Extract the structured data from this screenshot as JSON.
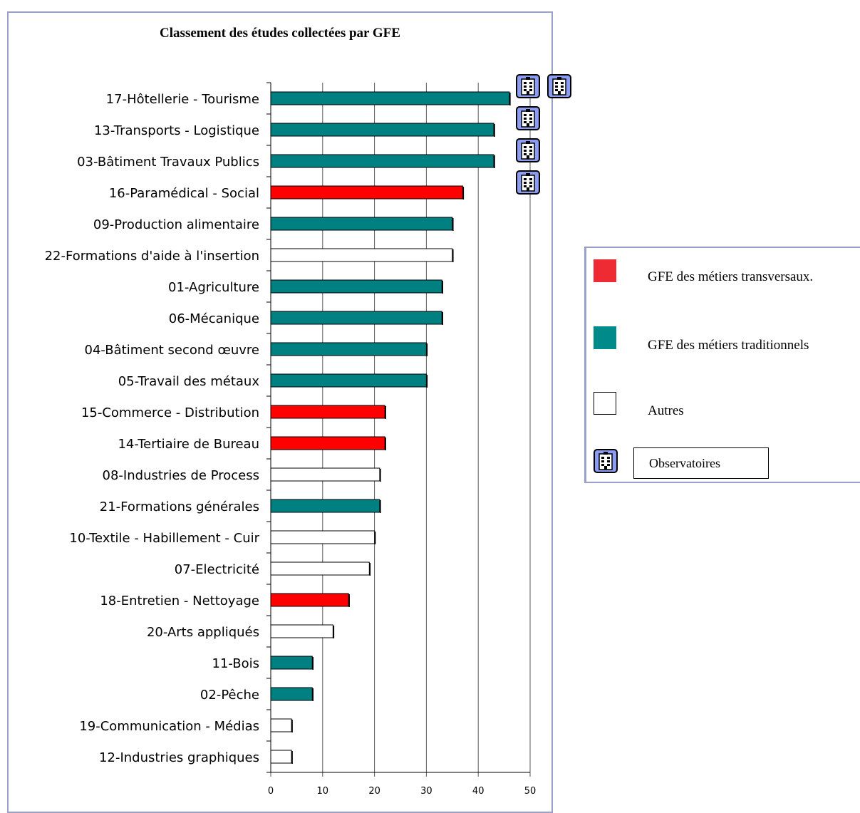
{
  "chart_data": {
    "type": "bar",
    "orientation": "horizontal",
    "title": "Classement des études collectées par GFE",
    "xlim": [
      0,
      50
    ],
    "xticks": [
      0,
      10,
      20,
      30,
      40,
      50
    ],
    "grid": "vertical",
    "categories": [
      "17-Hôtellerie - Tourisme",
      "13-Transports - Logistique",
      "03-Bâtiment Travaux Publics",
      "16-Paramédical - Social",
      "09-Production alimentaire",
      "22-Formations d'aide à l'insertion",
      "01-Agriculture",
      "06-Mécanique",
      "04-Bâtiment second œuvre",
      "05-Travail des métaux",
      "15-Commerce - Distribution",
      "14-Tertiaire de Bureau",
      "08-Industries de Process",
      "21-Formations générales",
      "10-Textile - Habillement - Cuir",
      "07-Electricité",
      "18-Entretien - Nettoyage",
      "20-Arts appliqués",
      "11-Bois",
      "02-Pêche",
      "19-Communication - Médias",
      "12-Industries graphiques"
    ],
    "values": [
      46,
      43,
      43,
      37,
      35,
      35,
      33,
      33,
      30,
      30,
      22,
      22,
      21,
      21,
      20,
      19,
      15,
      12,
      8,
      8,
      4,
      4
    ],
    "groups": [
      "trad",
      "trad",
      "trad",
      "trans",
      "trad",
      "autre",
      "trad",
      "trad",
      "trad",
      "trad",
      "trans",
      "trans",
      "autre",
      "trad",
      "autre",
      "autre",
      "trans",
      "autre",
      "trad",
      "trad",
      "autre",
      "autre"
    ],
    "observatoires": [
      2,
      1,
      1,
      1,
      0,
      0,
      0,
      0,
      0,
      0,
      0,
      0,
      0,
      0,
      0,
      0,
      0,
      0,
      0,
      0,
      0,
      0
    ],
    "colors": {
      "trans": "#ff0000",
      "trad": "#008080",
      "autre": "#ffffff",
      "icon": "#8c9cf0"
    },
    "legend": {
      "placement": "right",
      "items": [
        {
          "key": "trans",
          "label": "GFE des métiers transversaux."
        },
        {
          "key": "trad",
          "label": "GFE des métiers traditionnels"
        },
        {
          "key": "autre",
          "label": "Autres"
        },
        {
          "key": "obs",
          "label": "Observatoires",
          "icon": "building-icon"
        }
      ]
    }
  }
}
